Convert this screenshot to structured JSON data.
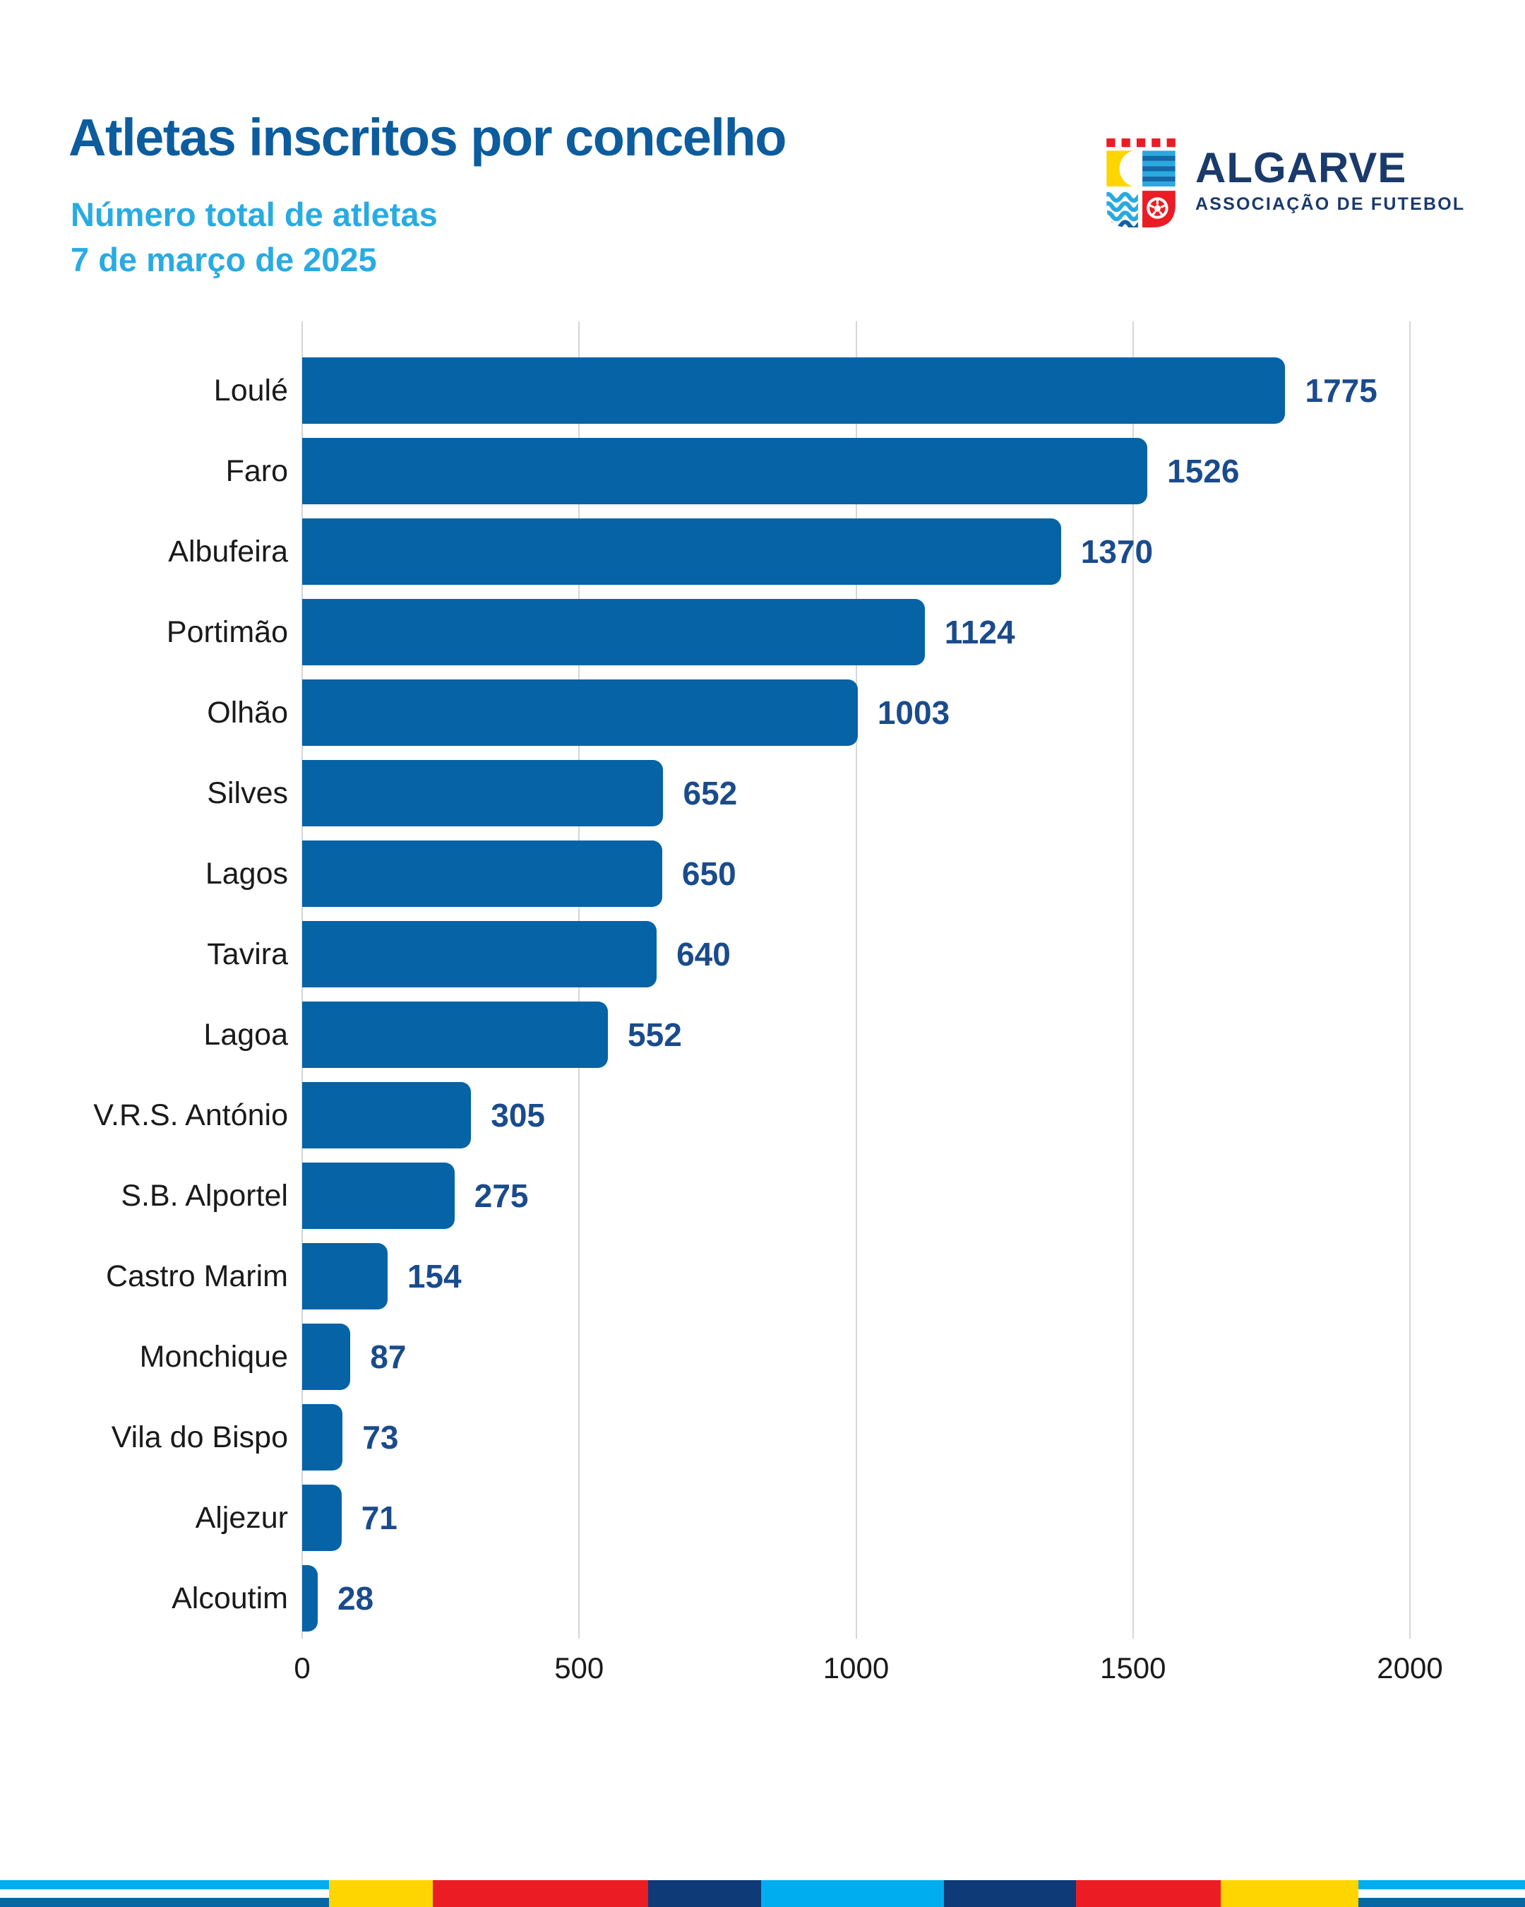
{
  "header": {
    "title": "Atletas inscritos por concelho",
    "subtitle": "Número total de atletas",
    "date": "7 de março de 2025",
    "logo": {
      "name": "ALGARVE",
      "tagline": "ASSOCIAÇÃO DE FUTEBOL"
    }
  },
  "chart_data": {
    "type": "bar",
    "orientation": "horizontal",
    "title": "Atletas inscritos por concelho",
    "subtitle": "Número total de atletas",
    "date_annotation": "7 de março de 2025",
    "categories": [
      "Loulé",
      "Faro",
      "Albufeira",
      "Portimão",
      "Olhão",
      "Silves",
      "Lagos",
      "Tavira",
      "Lagoa",
      "V.R.S. António",
      "S.B. Alportel",
      "Castro Marim",
      "Monchique",
      "Vila do Bispo",
      "Aljezur",
      "Alcoutim"
    ],
    "values": [
      1775,
      1526,
      1370,
      1124,
      1003,
      652,
      650,
      640,
      552,
      305,
      275,
      154,
      87,
      73,
      71,
      28
    ],
    "xlabel": "",
    "ylabel": "",
    "xlim": [
      0,
      2000
    ],
    "x_ticks": [
      0,
      500,
      1000,
      1500,
      2000
    ],
    "grid": true,
    "legend": false,
    "value_labels": true
  },
  "colors": {
    "bar_blue": "#0663A5",
    "title_blue": "#0C5C9E",
    "light_blue": "#29ABE2",
    "value_navy": "#1A4B8C",
    "label_black": "#1A1A1A",
    "gridline_gray": "#D6D6D6",
    "logo_navy": "#1A3A6B",
    "crest_red": "#EB1C24",
    "crest_yellow": "#FFD500",
    "crest_cyan": "#29A9E0",
    "crest_ocean": "#1468A7",
    "footer_cyan": "#00AEEF",
    "footer_yellow": "#FFD500",
    "footer_red": "#EB1C24",
    "footer_navy": "#0E3A78",
    "footer_ocean": "#0767A6"
  }
}
